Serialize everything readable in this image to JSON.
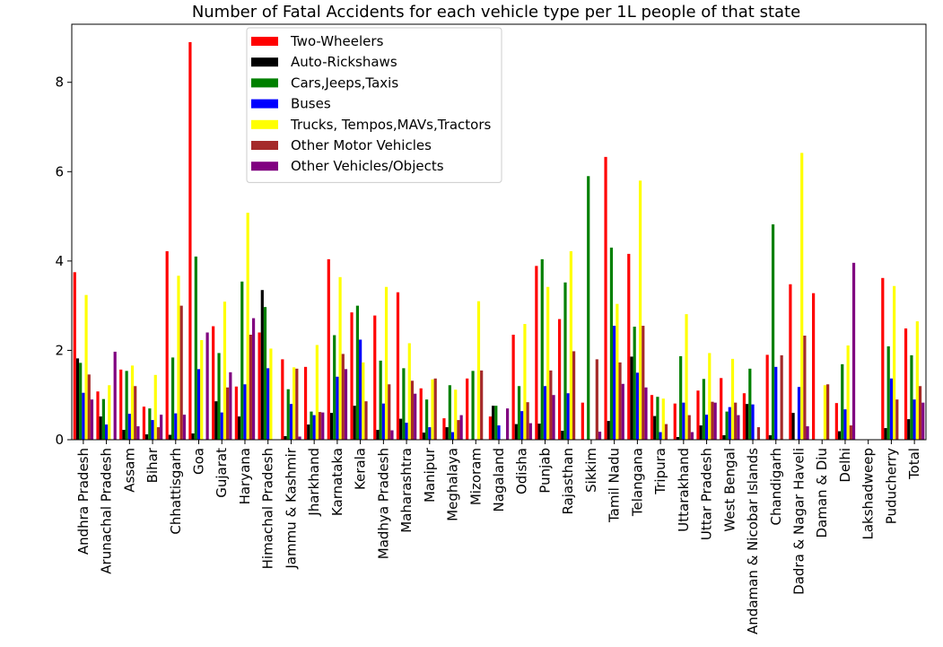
{
  "chart_data": {
    "type": "bar",
    "title": "Number of Fatal Accidents for each vehicle type per 1L people of that state",
    "xlabel": "",
    "ylabel": "",
    "ylim": [
      0,
      9.3
    ],
    "yticks": [
      0,
      2,
      4,
      6,
      8
    ],
    "grid": false,
    "legend_position": "top-left",
    "categories": [
      "Andhra Pradesh",
      "Arunachal Pradesh",
      "Assam",
      "Bihar",
      "Chhattisgarh",
      "Goa",
      "Gujarat",
      "Haryana",
      "Himachal Pradesh",
      "Jammu & Kashmir",
      "Jharkhand",
      "Karnataka",
      "Kerala",
      "Madhya Pradesh",
      "Maharashtra",
      "Manipur",
      "Meghalaya",
      "Mizoram",
      "Nagaland",
      "Odisha",
      "Punjab",
      "Rajasthan",
      "Sikkim",
      "Tamil Nadu",
      "Telangana",
      "Tripura",
      "Uttarakhand",
      "Uttar Pradesh",
      "West Bengal",
      "Andaman & Nicobar Islands",
      "Chandigarh",
      "Dadra & Nagar Haveli",
      "Daman & Diu",
      "Delhi",
      "Lakshadweep",
      "Puducherry",
      "Total"
    ],
    "series": [
      {
        "name": "Two-Wheelers",
        "color": "#ff0000",
        "values": [
          3.75,
          1.08,
          1.57,
          0.74,
          4.22,
          8.9,
          2.54,
          1.19,
          2.4,
          1.8,
          1.63,
          4.04,
          2.85,
          2.78,
          3.3,
          1.15,
          0.48,
          1.37,
          0.52,
          2.35,
          3.89,
          2.7,
          0.83,
          6.33,
          4.16,
          1.0,
          0.81,
          1.1,
          1.38,
          1.04,
          1.9,
          3.48,
          3.28,
          0.82,
          0,
          3.62,
          2.49
        ]
      },
      {
        "name": "Auto-Rickshaws",
        "color": "#000000",
        "values": [
          1.82,
          0.52,
          0.22,
          0.12,
          0.11,
          0.14,
          0.86,
          0.52,
          3.35,
          0.08,
          0.34,
          0.6,
          0.76,
          0.22,
          0.47,
          0.16,
          0.28,
          0.0,
          0.76,
          0.35,
          0.36,
          0.2,
          0.0,
          0.42,
          1.86,
          0.53,
          0.06,
          0.32,
          0.1,
          0.8,
          0.1,
          0.6,
          0.0,
          0.19,
          0,
          0.26,
          0.46
        ]
      },
      {
        "name": "Cars,Jeeps,Taxis",
        "color": "#008000",
        "values": [
          1.72,
          0.91,
          1.54,
          0.7,
          1.84,
          4.1,
          1.94,
          3.54,
          2.97,
          1.13,
          0.63,
          2.34,
          3.0,
          1.77,
          1.6,
          0.9,
          1.22,
          1.54,
          0.76,
          1.2,
          4.04,
          3.52,
          5.9,
          4.3,
          2.53,
          0.96,
          1.87,
          1.36,
          0.63,
          1.59,
          4.82,
          0.0,
          0.0,
          1.69,
          0,
          2.09,
          1.89
        ]
      },
      {
        "name": "Buses",
        "color": "#0000ff",
        "values": [
          1.05,
          0.34,
          0.58,
          0.44,
          0.59,
          1.58,
          0.61,
          1.24,
          1.6,
          0.8,
          0.55,
          1.41,
          2.24,
          0.81,
          0.38,
          0.28,
          0.17,
          0.0,
          0.32,
          0.64,
          1.2,
          1.04,
          0.0,
          2.55,
          1.5,
          0.17,
          0.83,
          0.56,
          0.73,
          0.79,
          1.63,
          1.18,
          0.0,
          0.68,
          0,
          1.37,
          0.9
        ]
      },
      {
        "name": "Trucks, Tempos,MAVs,Tractors",
        "color": "#ffff00",
        "values": [
          3.24,
          1.22,
          1.66,
          1.45,
          3.67,
          2.23,
          3.09,
          5.08,
          2.04,
          1.62,
          2.12,
          3.64,
          1.73,
          3.42,
          2.16,
          1.35,
          1.12,
          3.1,
          0.0,
          2.59,
          3.42,
          4.22,
          0.0,
          3.04,
          5.8,
          0.92,
          2.81,
          1.94,
          1.81,
          0.0,
          0.0,
          6.42,
          1.22,
          2.11,
          0,
          3.44,
          2.65
        ]
      },
      {
        "name": "Other Motor Vehicles",
        "color": "#a52a2a",
        "values": [
          1.46,
          0.0,
          1.2,
          0.28,
          3.0,
          0.0,
          1.17,
          2.35,
          0.0,
          1.59,
          0.62,
          1.92,
          0.86,
          1.24,
          1.32,
          1.37,
          0.44,
          1.55,
          0.0,
          0.84,
          1.55,
          1.98,
          1.8,
          1.73,
          2.55,
          0.35,
          0.55,
          0.85,
          0.83,
          0.28,
          1.89,
          2.33,
          1.24,
          0.32,
          0,
          0.9,
          1.2
        ]
      },
      {
        "name": "Other Vehicles/Objects",
        "color": "#800080",
        "values": [
          0.9,
          1.97,
          0.3,
          0.56,
          0.56,
          2.4,
          1.51,
          2.72,
          0.0,
          0.07,
          0.61,
          1.58,
          0.0,
          0.21,
          1.03,
          0.0,
          0.55,
          0.0,
          0.7,
          0.37,
          1.0,
          0.0,
          0.18,
          1.25,
          1.17,
          0.0,
          0.17,
          0.83,
          0.55,
          0.0,
          0.0,
          0.3,
          0.0,
          3.96,
          0,
          0.0,
          0.83
        ]
      }
    ]
  }
}
